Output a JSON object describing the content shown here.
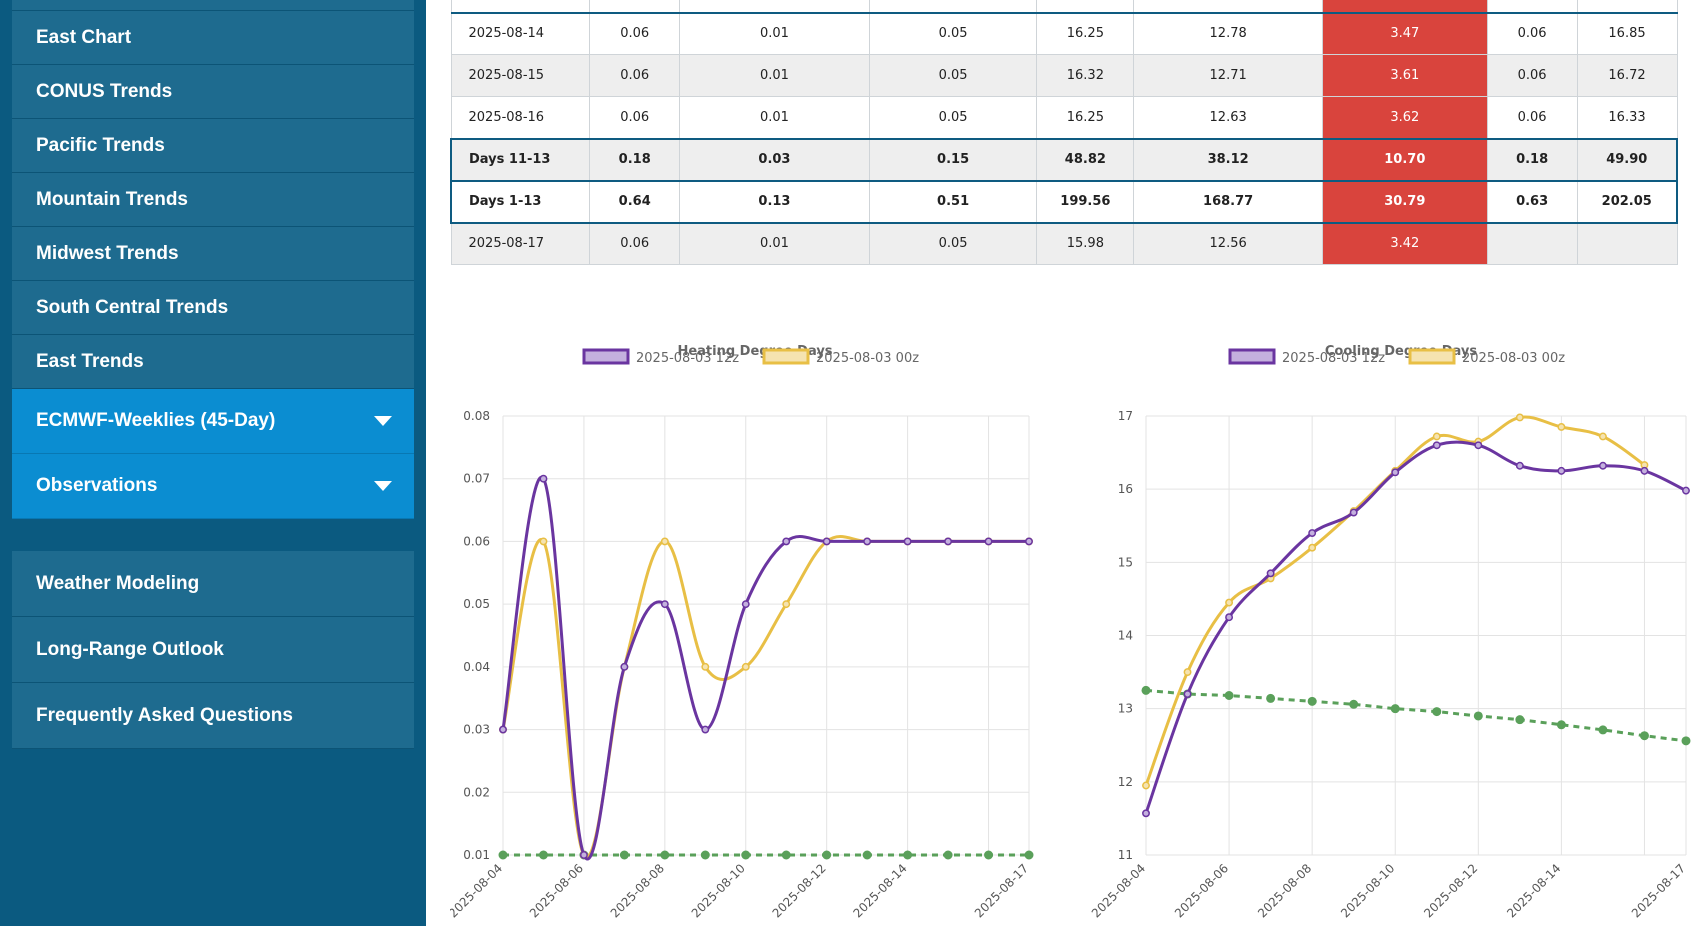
{
  "sidebar": {
    "items_top": [
      {
        "label": "East Chart"
      },
      {
        "label": "CONUS Trends"
      },
      {
        "label": "Pacific Trends"
      },
      {
        "label": "Mountain Trends"
      },
      {
        "label": "Midwest Trends"
      },
      {
        "label": "South Central Trends"
      },
      {
        "label": "East Trends"
      }
    ],
    "dropdowns": [
      {
        "label": "ECMWF-Weeklies (45-Day)"
      },
      {
        "label": "Observations"
      }
    ],
    "items_bottom": [
      {
        "label": "Weather Modeling"
      },
      {
        "label": "Long-Range Outlook"
      },
      {
        "label": "Frequently Asked Questions"
      }
    ]
  },
  "table": {
    "rows": [
      {
        "cells": [
          "2025-08-14",
          "0.06",
          "0.01",
          "0.05",
          "16.25",
          "12.78",
          "3.47",
          "0.06",
          "16.85"
        ],
        "style": "plain"
      },
      {
        "cells": [
          "2025-08-15",
          "0.06",
          "0.01",
          "0.05",
          "16.32",
          "12.71",
          "3.61",
          "0.06",
          "16.72"
        ],
        "style": "shade"
      },
      {
        "cells": [
          "2025-08-16",
          "0.06",
          "0.01",
          "0.05",
          "16.25",
          "12.63",
          "3.62",
          "0.06",
          "16.33"
        ],
        "style": "plain"
      },
      {
        "cells": [
          "Days 11-13",
          "0.18",
          "0.03",
          "0.15",
          "48.82",
          "38.12",
          "10.70",
          "0.18",
          "49.90"
        ],
        "style": "summary-shade"
      },
      {
        "cells": [
          "Days 1-13",
          "0.64",
          "0.13",
          "0.51",
          "199.56",
          "168.77",
          "30.79",
          "0.63",
          "202.05"
        ],
        "style": "summary"
      },
      {
        "cells": [
          "2025-08-17",
          "0.06",
          "0.01",
          "0.05",
          "15.98",
          "12.56",
          "3.42",
          "",
          ""
        ],
        "style": "shade"
      }
    ],
    "highlight_color": "#d9443d"
  },
  "chart_data": [
    {
      "type": "line",
      "title": "Heating Degree Days",
      "x": [
        "2025-08-04",
        "2025-08-05",
        "2025-08-06",
        "2025-08-07",
        "2025-08-08",
        "2025-08-09",
        "2025-08-10",
        "2025-08-11",
        "2025-08-12",
        "2025-08-13",
        "2025-08-14",
        "2025-08-15",
        "2025-08-16",
        "2025-08-17"
      ],
      "x_tick_labels": [
        "2025-08-04",
        "2025-08-06",
        "2025-08-08",
        "2025-08-10",
        "2025-08-12",
        "2025-08-14",
        "2025-08-17"
      ],
      "ylim": [
        0.01,
        0.08
      ],
      "y_ticks": [
        "0.08",
        "0.07",
        "0.06",
        "0.05",
        "0.04",
        "0.03",
        "0.02",
        "0.01"
      ],
      "series": [
        {
          "name": "2025-08-03 12z",
          "color": "#6a35a0",
          "fill": "#c4b0de",
          "values": [
            0.03,
            0.07,
            0.01,
            0.04,
            0.05,
            0.03,
            0.05,
            0.06,
            0.06,
            0.06,
            0.06,
            0.06,
            0.06,
            0.06
          ]
        },
        {
          "name": "2025-08-03 00z",
          "color": "#e8bf45",
          "fill": "#f5e3b0",
          "values": [
            0.03,
            0.06,
            0.01,
            0.04,
            0.06,
            0.04,
            0.04,
            0.05,
            0.06,
            0.06,
            0.06,
            0.06,
            0.06,
            0.06
          ]
        },
        {
          "color": "#5aa05a",
          "dashed": true,
          "values": [
            0.01,
            0.01,
            0.01,
            0.01,
            0.01,
            0.01,
            0.01,
            0.01,
            0.01,
            0.01,
            0.01,
            0.01,
            0.01,
            0.01
          ]
        }
      ],
      "grid": true,
      "legend": "top-center"
    },
    {
      "type": "line",
      "title": "Cooling Degree Days",
      "x": [
        "2025-08-04",
        "2025-08-05",
        "2025-08-06",
        "2025-08-07",
        "2025-08-08",
        "2025-08-09",
        "2025-08-10",
        "2025-08-11",
        "2025-08-12",
        "2025-08-13",
        "2025-08-14",
        "2025-08-15",
        "2025-08-16",
        "2025-08-17"
      ],
      "x_tick_labels": [
        "2025-08-04",
        "2025-08-06",
        "2025-08-08",
        "2025-08-10",
        "2025-08-12",
        "2025-08-14",
        "2025-08-17"
      ],
      "ylim": [
        11,
        17
      ],
      "y_ticks": [
        "17",
        "16",
        "15",
        "14",
        "13",
        "12",
        "11"
      ],
      "series": [
        {
          "name": "2025-08-03 12z",
          "color": "#6a35a0",
          "fill": "#c4b0de",
          "values": [
            11.57,
            13.2,
            14.25,
            14.85,
            15.4,
            15.68,
            16.23,
            16.6,
            16.6,
            16.32,
            16.25,
            16.32,
            16.25,
            15.98
          ]
        },
        {
          "name": "2025-08-03 00z",
          "color": "#e8bf45",
          "fill": "#f5e3b0",
          "values": [
            11.95,
            13.5,
            14.45,
            14.78,
            15.2,
            15.7,
            16.25,
            16.72,
            16.65,
            16.98,
            16.85,
            16.72,
            16.33,
            null
          ]
        },
        {
          "color": "#5aa05a",
          "dashed": true,
          "values": [
            13.25,
            13.2,
            13.18,
            13.14,
            13.1,
            13.06,
            13.0,
            12.96,
            12.9,
            12.85,
            12.78,
            12.71,
            12.63,
            12.56
          ]
        }
      ],
      "grid": true,
      "legend": "top-center"
    }
  ]
}
